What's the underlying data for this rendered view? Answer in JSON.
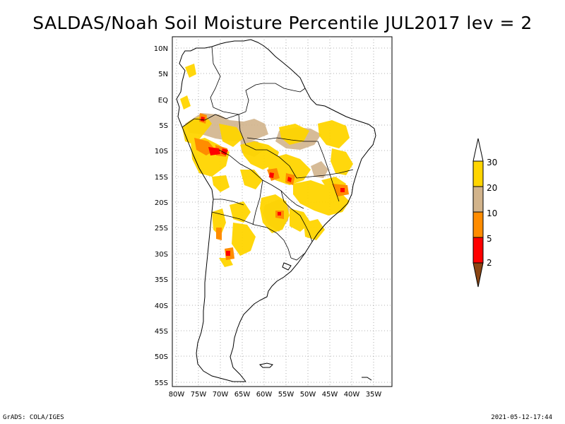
{
  "title": "SALDAS/Noah Soil Moisture Percentile JUL2017 lev = 2",
  "footer": {
    "left": "GrADS: COLA/IGES",
    "right": "2021-05-12-17:44"
  },
  "axes": {
    "lat_ticks": [
      "10N",
      "5N",
      "EQ",
      "5S",
      "10S",
      "15S",
      "20S",
      "25S",
      "30S",
      "35S",
      "40S",
      "45S",
      "50S",
      "55S"
    ],
    "lon_ticks": [
      "80W",
      "75W",
      "70W",
      "65W",
      "60W",
      "55W",
      "50W",
      "45W",
      "40W",
      "35W"
    ]
  },
  "colorbar": {
    "labels": [
      "30",
      "20",
      "10",
      "5",
      "2"
    ],
    "colors": {
      "above30": "#ffffff",
      "c20_30": "#ffd500",
      "c10_20": "#d2b48c",
      "c5_10": "#ff8c00",
      "c2_5": "#ff0000",
      "below2": "#8b4513"
    }
  },
  "colors": {
    "yellow": "#ffd500",
    "tan": "#d2b48c",
    "orange": "#ff8c00",
    "red": "#ff0000"
  }
}
